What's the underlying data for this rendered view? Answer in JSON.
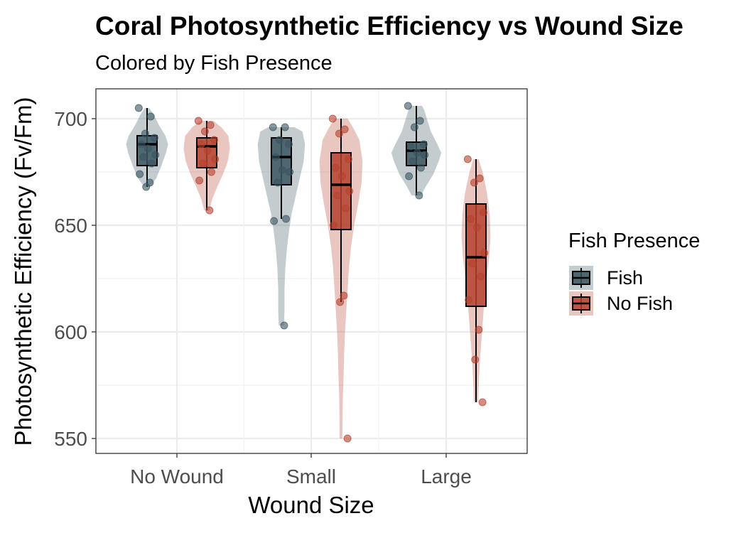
{
  "chart_data": {
    "type": "violin",
    "title": "Coral Photosynthetic Efficiency vs Wound Size",
    "subtitle": "Colored by Fish Presence",
    "xlabel": "Wound Size",
    "ylabel": "Photosynthetic Efficiency (Fv/Fm)",
    "categories": [
      "No Wound",
      "Small",
      "Large"
    ],
    "yticks": [
      550,
      600,
      650,
      700
    ],
    "ylim": [
      543,
      714
    ],
    "grid": true,
    "legend": {
      "title": "Fish Presence",
      "position": "right"
    },
    "series": [
      {
        "name": "Fish",
        "color": "#3b5560",
        "groups": [
          {
            "category": "No Wound",
            "box": {
              "min": 668,
              "q1": 678,
              "median": 688,
              "q3": 692,
              "max": 705
            },
            "violin": {
              "min": 668,
              "max": 705,
              "widths": [
                [
                  668,
                  0.1
                ],
                [
                  672,
                  0.35
                ],
                [
                  678,
                  0.55
                ],
                [
                  684,
                  0.72
                ],
                [
                  688,
                  0.8
                ],
                [
                  692,
                  0.7
                ],
                [
                  697,
                  0.45
                ],
                [
                  702,
                  0.25
                ],
                [
                  705,
                  0.08
                ]
              ]
            },
            "points": [
              705,
              701,
              693,
              691,
              688,
              686,
              683,
              682,
              679,
              674,
              670,
              668
            ]
          },
          {
            "category": "Small",
            "box": {
              "min": 653,
              "q1": 669,
              "median": 682,
              "q3": 691,
              "max": 696
            },
            "violin": {
              "min": 603,
              "max": 696,
              "widths": [
                [
                  603,
                  0.1
                ],
                [
                  610,
                  0.12
                ],
                [
                  620,
                  0.12
                ],
                [
                  630,
                  0.15
                ],
                [
                  640,
                  0.22
                ],
                [
                  648,
                  0.3
                ],
                [
                  656,
                  0.4
                ],
                [
                  664,
                  0.55
                ],
                [
                  672,
                  0.7
                ],
                [
                  680,
                  0.85
                ],
                [
                  688,
                  0.9
                ],
                [
                  694,
                  0.8
                ],
                [
                  696,
                  0.5
                ]
              ]
            },
            "points": [
              696,
              696,
              690,
              688,
              682,
              676,
              675,
              670,
              653,
              652,
              603
            ]
          },
          {
            "category": "Large",
            "box": {
              "min": 664,
              "q1": 678,
              "median": 685,
              "q3": 689,
              "max": 706
            },
            "violin": {
              "min": 664,
              "max": 706,
              "widths": [
                [
                  664,
                  0.18
                ],
                [
                  668,
                  0.35
                ],
                [
                  674,
                  0.65
                ],
                [
                  680,
                  0.85
                ],
                [
                  684,
                  0.95
                ],
                [
                  688,
                  0.8
                ],
                [
                  694,
                  0.55
                ],
                [
                  700,
                  0.4
                ],
                [
                  704,
                  0.3
                ],
                [
                  706,
                  0.22
                ]
              ]
            },
            "points": [
              706,
              699,
              696,
              688,
              687,
              684,
              683,
              680,
              677,
              673,
              664
            ]
          }
        ]
      },
      {
        "name": "No Fish",
        "color": "#b5412f",
        "groups": [
          {
            "category": "No Wound",
            "box": {
              "min": 657,
              "q1": 677,
              "median": 687,
              "q3": 691,
              "max": 699
            },
            "violin": {
              "min": 657,
              "max": 699,
              "widths": [
                [
                  657,
                  0.1
                ],
                [
                  662,
                  0.2
                ],
                [
                  668,
                  0.4
                ],
                [
                  674,
                  0.62
                ],
                [
                  680,
                  0.8
                ],
                [
                  686,
                  0.88
                ],
                [
                  692,
                  0.82
                ],
                [
                  696,
                  0.55
                ],
                [
                  699,
                  0.25
                ]
              ]
            },
            "points": [
              699,
              697,
              694,
              690,
              688,
              685,
              681,
              679,
              675,
              671,
              657
            ]
          },
          {
            "category": "Small",
            "box": {
              "min": 614,
              "q1": 648,
              "median": 669,
              "q3": 684,
              "max": 700
            },
            "violin": {
              "min": 550,
              "max": 700,
              "widths": [
                [
                  550,
                  0.05
                ],
                [
                  560,
                  0.06
                ],
                [
                  570,
                  0.07
                ],
                [
                  580,
                  0.1
                ],
                [
                  590,
                  0.12
                ],
                [
                  600,
                  0.15
                ],
                [
                  610,
                  0.2
                ],
                [
                  620,
                  0.25
                ],
                [
                  630,
                  0.3
                ],
                [
                  640,
                  0.38
                ],
                [
                  650,
                  0.5
                ],
                [
                  660,
                  0.65
                ],
                [
                  670,
                  0.78
                ],
                [
                  680,
                  0.82
                ],
                [
                  690,
                  0.7
                ],
                [
                  696,
                  0.45
                ],
                [
                  700,
                  0.25
                ]
              ]
            },
            "points": [
              700,
              695,
              693,
              681,
              677,
              673,
              666,
              664,
              658,
              650,
              617,
              614,
              550
            ]
          },
          {
            "category": "Large",
            "box": {
              "min": 567,
              "q1": 612,
              "median": 635,
              "q3": 660,
              "max": 681
            },
            "violin": {
              "min": 567,
              "max": 681,
              "widths": [
                [
                  567,
                  0.08
                ],
                [
                  575,
                  0.1
                ],
                [
                  585,
                  0.14
                ],
                [
                  595,
                  0.2
                ],
                [
                  605,
                  0.26
                ],
                [
                  615,
                  0.32
                ],
                [
                  625,
                  0.4
                ],
                [
                  635,
                  0.5
                ],
                [
                  645,
                  0.55
                ],
                [
                  655,
                  0.52
                ],
                [
                  665,
                  0.42
                ],
                [
                  675,
                  0.25
                ],
                [
                  681,
                  0.1
                ]
              ]
            },
            "points": [
              681,
              672,
              670,
              656,
              653,
              649,
              637,
              632,
              626,
              615,
              601,
              587,
              567
            ]
          }
        ]
      }
    ]
  }
}
